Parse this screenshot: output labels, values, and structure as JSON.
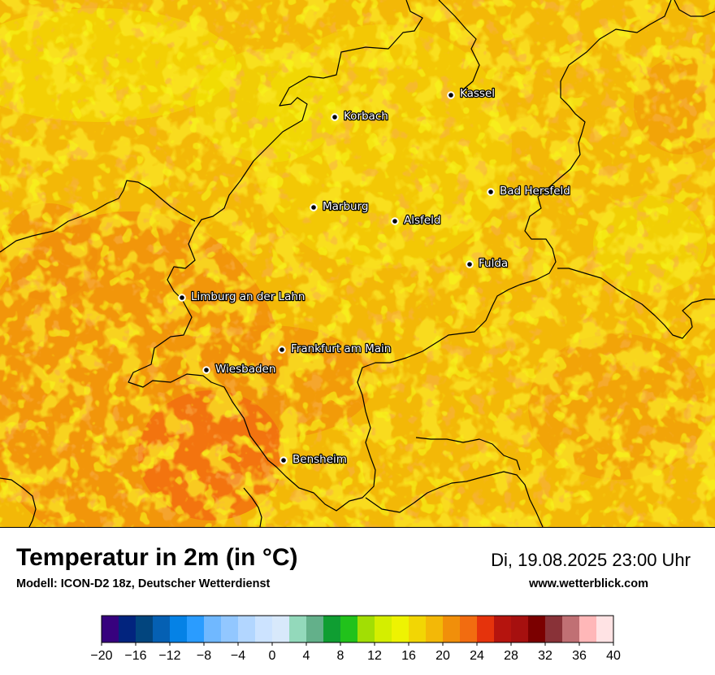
{
  "map": {
    "cities": [
      {
        "name": "Kassel",
        "id": "kassel"
      },
      {
        "name": "Korbach",
        "id": "korbach"
      },
      {
        "name": "Bad Hersfeld",
        "id": "bad-hersfeld"
      },
      {
        "name": "Marburg",
        "id": "marburg"
      },
      {
        "name": "Alsfeld",
        "id": "alsfeld"
      },
      {
        "name": "Fulda",
        "id": "fulda"
      },
      {
        "name": "Limburg an der Lahn",
        "id": "limburg"
      },
      {
        "name": "Frankfurt am Main",
        "id": "frankfurt"
      },
      {
        "name": "Wiesbaden",
        "id": "wiesbaden"
      },
      {
        "name": "Bensheim",
        "id": "bensheim"
      }
    ]
  },
  "footer": {
    "title": "Temperatur in 2m (in °C)",
    "subtitle": "Modell: ICON-D2 18z, Deutscher Wetterdienst",
    "datetime": "Di, 19.08.2025 23:00 Uhr",
    "site": "www.wetterblick.com"
  },
  "legend": {
    "ticks": [
      "−20",
      "−16",
      "−12",
      "−8",
      "−4",
      "0",
      "4",
      "8",
      "12",
      "16",
      "20",
      "24",
      "28",
      "32",
      "36",
      "40"
    ],
    "colors": [
      "#37027e",
      "#02247e",
      "#02457e",
      "#0560b3",
      "#0582e6",
      "#2a9cff",
      "#70b8ff",
      "#92c7ff",
      "#b2d6ff",
      "#cce3ff",
      "#d8e9fb",
      "#93d9bb",
      "#63b08a",
      "#0f9e32",
      "#21c21b",
      "#a2de04",
      "#d4ee00",
      "#eef302",
      "#f2d604",
      "#f3b807",
      "#f18f0a",
      "#f26c10",
      "#e5330c",
      "#b5140e",
      "#a6100f",
      "#7b0000",
      "#893238",
      "#c07074",
      "#ffb7b8",
      "#ffe3e4"
    ]
  }
}
